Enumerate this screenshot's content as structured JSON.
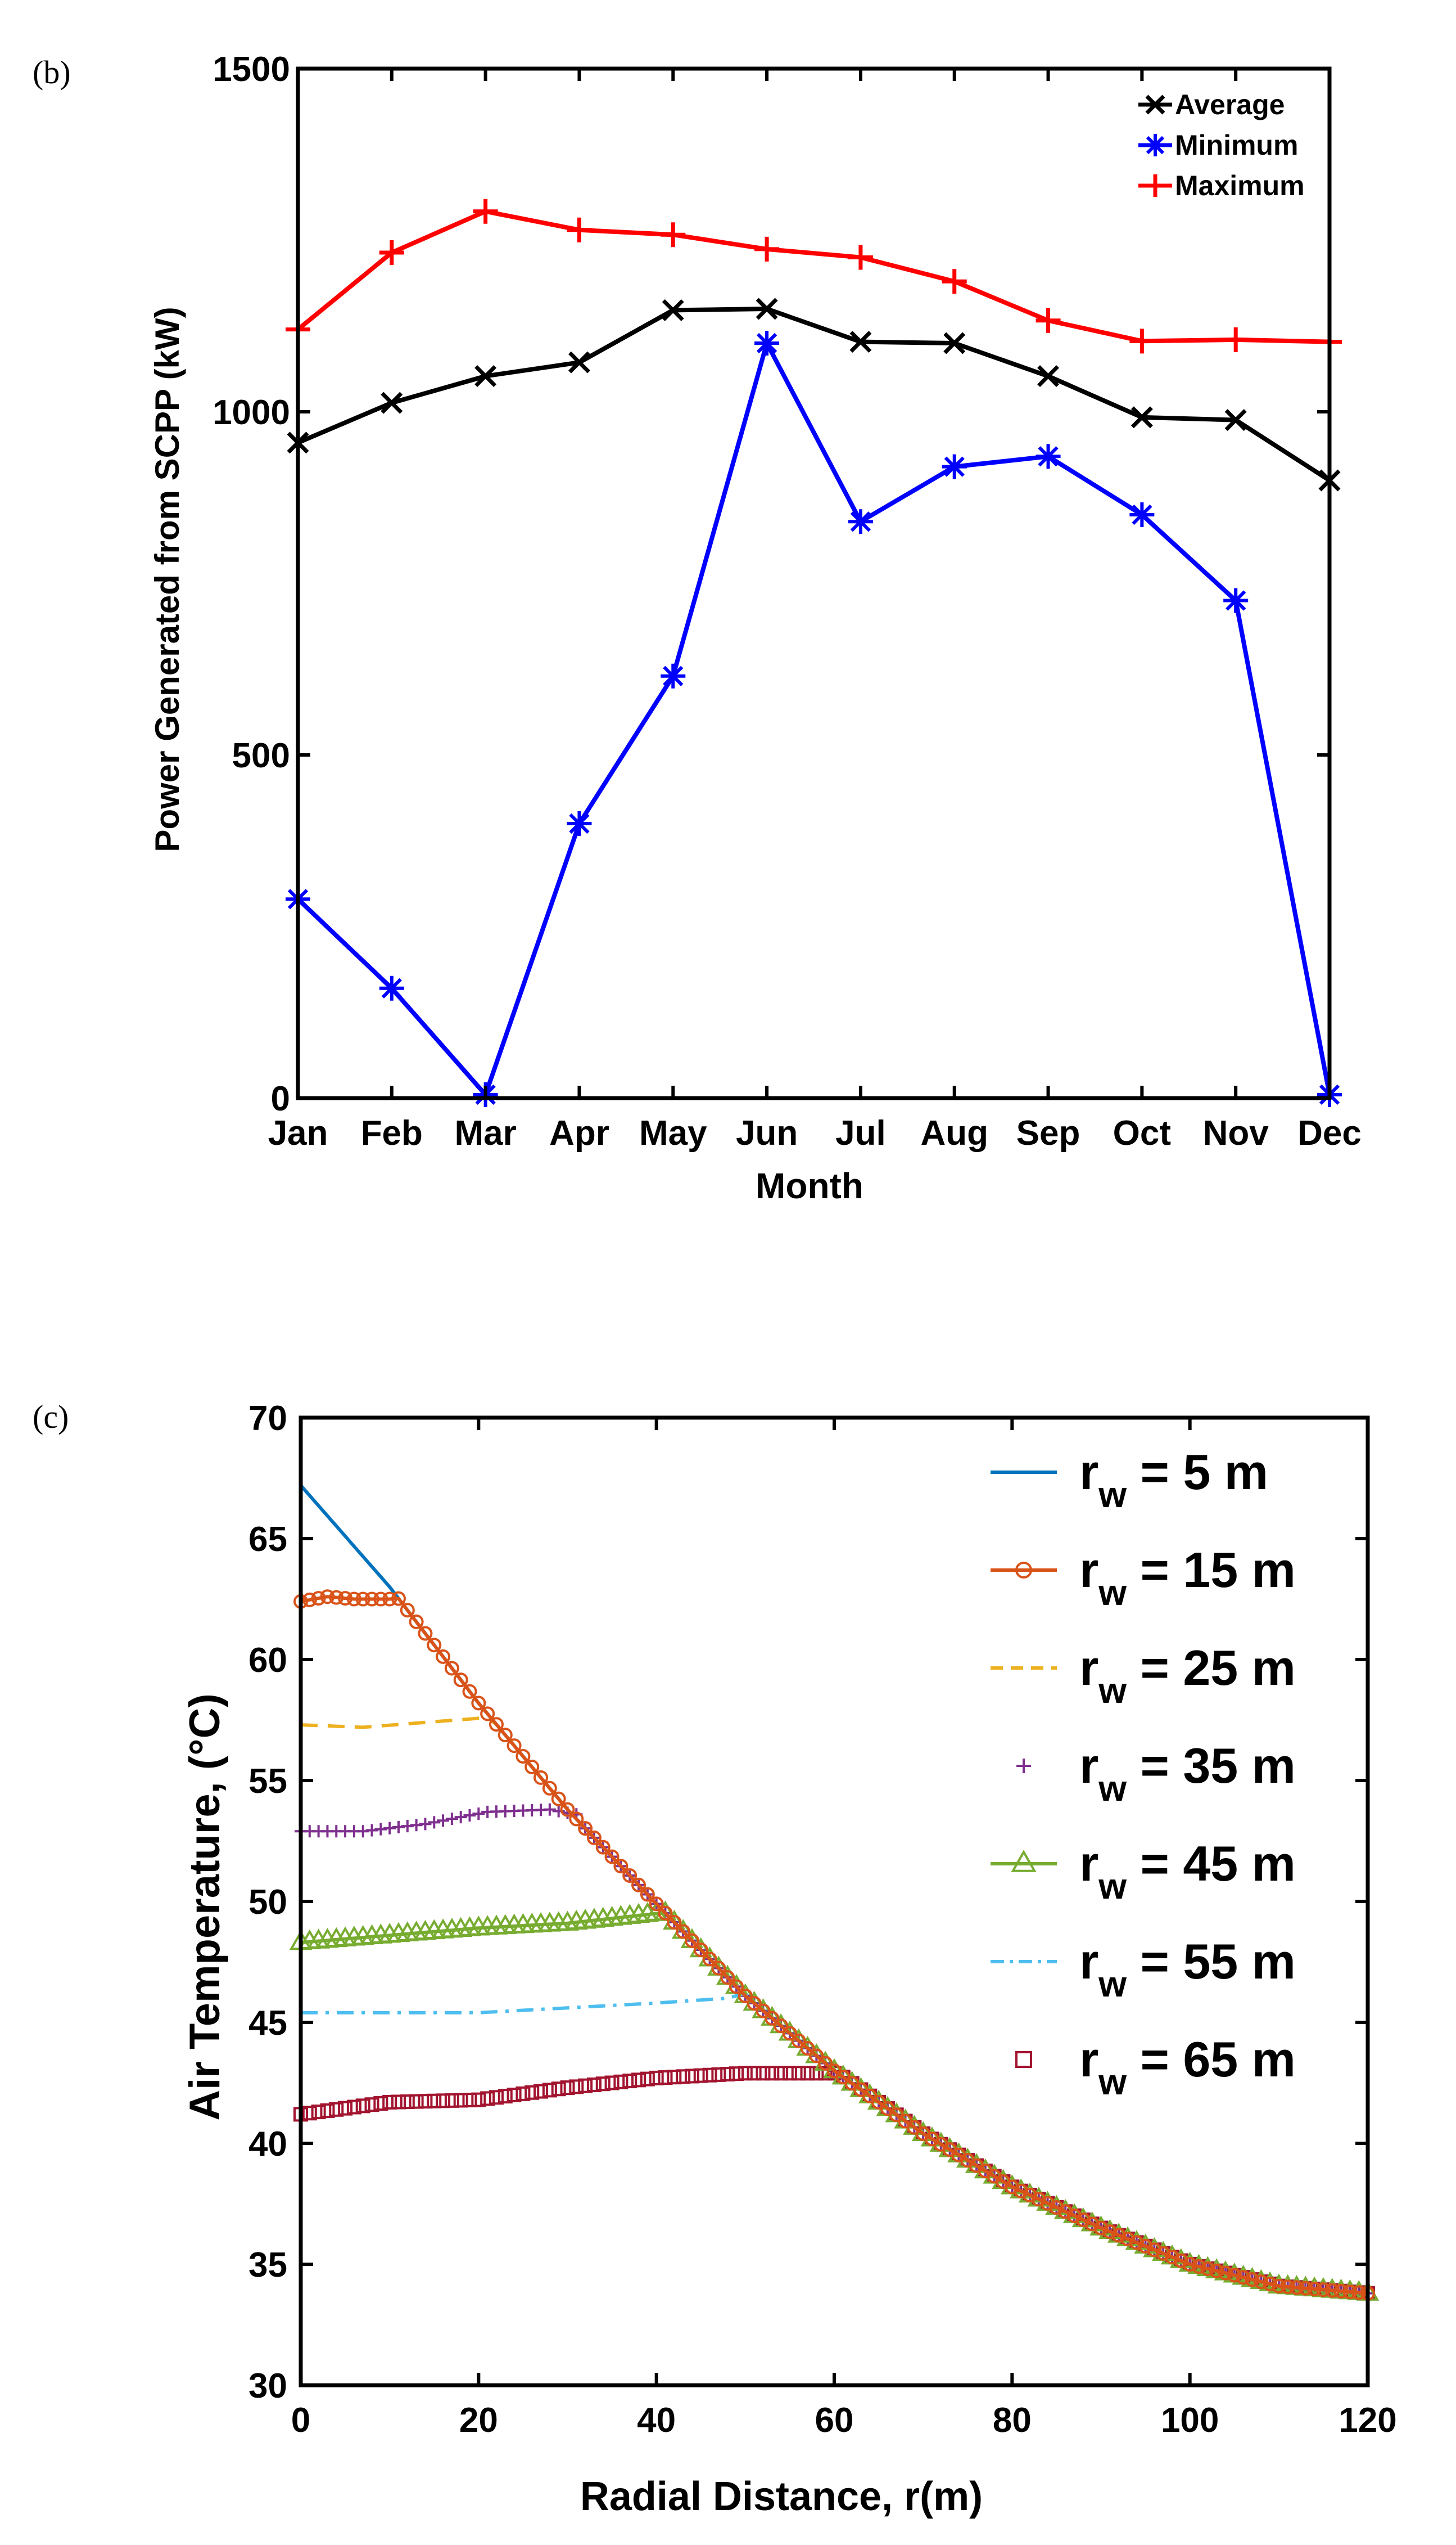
{
  "chart_data": [
    {
      "panel_label": "(b)",
      "type": "line",
      "title": "",
      "xlabel": "Month",
      "ylabel": "Power Generated from SCPP (kW)",
      "categories": [
        "Jan",
        "Feb",
        "Mar",
        "Apr",
        "May",
        "Jun",
        "Jul",
        "Aug",
        "Sep",
        "Oct",
        "Nov",
        "Dec"
      ],
      "ylim": [
        0,
        1500
      ],
      "yticks": [
        "0",
        "500",
        "1000",
        "1500"
      ],
      "legend_position": "top-right",
      "series": [
        {
          "name": "Average",
          "color": "#000000",
          "marker": "x",
          "values": [
            955,
            1013,
            1052,
            1072,
            1148,
            1150,
            1102,
            1100,
            1052,
            992,
            988,
            900
          ]
        },
        {
          "name": "Minimum",
          "color": "#0000ff",
          "marker": "asterisk",
          "values": [
            290,
            160,
            5,
            400,
            615,
            1100,
            840,
            920,
            935,
            850,
            725,
            5
          ]
        },
        {
          "name": "Maximum",
          "color": "#ff0000",
          "marker": "plus",
          "values": [
            1120,
            1232,
            1292,
            1265,
            1258,
            1237,
            1225,
            1190,
            1133,
            1103,
            1105,
            1102
          ]
        }
      ]
    },
    {
      "panel_label": "(c)",
      "type": "line",
      "title": "",
      "xlabel": "Radial Distance, r(m)",
      "ylabel": "Air Temperature, (°C)",
      "xlim": [
        0,
        120
      ],
      "ylim": [
        30,
        70
      ],
      "xticks": [
        "0",
        "20",
        "40",
        "60",
        "80",
        "100",
        "120"
      ],
      "yticks": [
        "30",
        "35",
        "40",
        "45",
        "50",
        "55",
        "60",
        "65",
        "70"
      ],
      "legend_position": "top-right",
      "common_curve": {
        "x": [
          0,
          10,
          20,
          30,
          40,
          50,
          60,
          70,
          80,
          90,
          100,
          110,
          120
        ],
        "y": [
          67.2,
          63.0,
          58.2,
          53.8,
          49.9,
          46.1,
          43.0,
          40.4,
          38.2,
          36.5,
          35.0,
          34.1,
          33.8
        ]
      },
      "series": [
        {
          "name": "r",
          "subscript": "w",
          "suffix": " = 5 m",
          "color": "#0072bd",
          "style": "solid",
          "marker": "none",
          "plateau_x": [],
          "plateau_y": []
        },
        {
          "name": "r",
          "subscript": "w",
          "suffix": " = 15 m",
          "color": "#d95319",
          "style": "solid",
          "marker": "circle",
          "plateau_x": [
            0,
            3,
            6,
            9,
            10
          ],
          "plateau_y": [
            62.4,
            62.6,
            62.5,
            62.5,
            62.5
          ]
        },
        {
          "name": "r",
          "subscript": "w",
          "suffix": " = 25 m",
          "color": "#edb120",
          "style": "dashed",
          "marker": "none",
          "plateau_x": [
            0,
            7,
            14,
            21
          ],
          "plateau_y": [
            57.3,
            57.2,
            57.4,
            57.6
          ]
        },
        {
          "name": "r",
          "subscript": "w",
          "suffix": " = 35 m",
          "color": "#7e2f8e",
          "style": "none",
          "marker": "plus",
          "plateau_x": [
            0,
            7,
            14,
            21,
            28,
            31
          ],
          "plateau_y": [
            52.9,
            52.9,
            53.2,
            53.7,
            53.8,
            53.6
          ]
        },
        {
          "name": "r",
          "subscript": "w",
          "suffix": " = 45 m",
          "color": "#77ac30",
          "style": "solid",
          "marker": "triangle",
          "plateau_x": [
            0,
            10,
            20,
            30,
            40
          ],
          "plateau_y": [
            48.3,
            48.6,
            48.9,
            49.1,
            49.5
          ]
        },
        {
          "name": "r",
          "subscript": "w",
          "suffix": " = 55 m",
          "color": "#4dbeee",
          "style": "dashdot",
          "marker": "none",
          "plateau_x": [
            0,
            10,
            20,
            30,
            40,
            48,
            50
          ],
          "plateau_y": [
            45.4,
            45.4,
            45.4,
            45.6,
            45.8,
            46.0,
            46.2
          ]
        },
        {
          "name": "r",
          "subscript": "w",
          "suffix": " = 65 m",
          "color": "#a2142f",
          "style": "none",
          "marker": "square",
          "plateau_x": [
            0,
            10,
            20,
            30,
            40,
            50,
            60
          ],
          "plateau_y": [
            41.2,
            41.7,
            41.8,
            42.3,
            42.7,
            42.9,
            42.9
          ]
        }
      ]
    }
  ]
}
